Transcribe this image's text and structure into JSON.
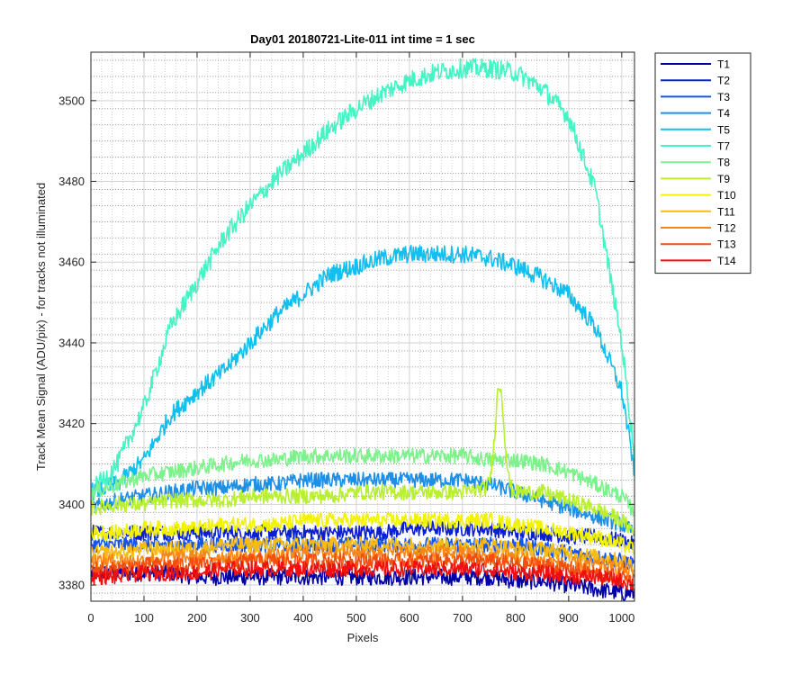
{
  "chart_data": {
    "type": "line",
    "title": "Day01 20180721-Lite-011 int time = 1 sec",
    "xlabel": "Pixels",
    "ylabel": "Track Mean Signal (ADU/pix) - for tracks not illuminated",
    "xlim": [
      0,
      1024
    ],
    "ylim": [
      3376,
      3512
    ],
    "xticks": [
      0,
      100,
      200,
      300,
      400,
      500,
      600,
      700,
      800,
      900,
      1000
    ],
    "yticks": [
      3380,
      3400,
      3420,
      3440,
      3460,
      3480,
      3500
    ],
    "grid": true,
    "minor_grid": true,
    "legend_position": "outside-top-right",
    "x_sample": [
      0,
      50,
      100,
      150,
      200,
      250,
      300,
      350,
      400,
      450,
      500,
      550,
      600,
      650,
      700,
      750,
      800,
      850,
      900,
      950,
      1000,
      1024
    ],
    "series": [
      {
        "name": "T1",
        "color": "#0000a8",
        "noise": 1.3,
        "values": [
          3383,
          3383,
          3383,
          3383,
          3382,
          3382,
          3382,
          3382,
          3382,
          3382,
          3382,
          3382,
          3382,
          3382,
          3382,
          3382,
          3381,
          3381,
          3380,
          3379,
          3378,
          3378
        ]
      },
      {
        "name": "T2",
        "color": "#0a1fd4",
        "noise": 1.2,
        "values": [
          3393,
          3393,
          3393,
          3393,
          3393,
          3393,
          3393,
          3393,
          3393,
          3393,
          3393,
          3393,
          3394,
          3394,
          3394,
          3394,
          3393,
          3393,
          3392,
          3392,
          3391,
          3390
        ]
      },
      {
        "name": "T3",
        "color": "#1454e8",
        "noise": 1.2,
        "values": [
          3390,
          3390,
          3390,
          3390,
          3390,
          3390,
          3390,
          3390,
          3390,
          3390,
          3390,
          3390,
          3390,
          3390,
          3390,
          3390,
          3390,
          3389,
          3388,
          3387,
          3386,
          3385
        ]
      },
      {
        "name": "T4",
        "color": "#1e8fe6",
        "noise": 1.2,
        "values": [
          3399,
          3401,
          3402,
          3403,
          3404,
          3404,
          3405,
          3405,
          3406,
          3406,
          3406,
          3406,
          3406,
          3406,
          3406,
          3405,
          3403,
          3401,
          3399,
          3397,
          3395,
          3393
        ]
      },
      {
        "name": "T5",
        "color": "#11c0ee",
        "noise": 1.4,
        "values": [
          3403,
          3405,
          3411,
          3422,
          3428,
          3433,
          3440,
          3447,
          3452,
          3457,
          3459,
          3461,
          3462,
          3462,
          3462,
          3461,
          3459,
          3456,
          3452,
          3444,
          3428,
          3408
        ]
      },
      {
        "name": "T7",
        "color": "#46f3c4",
        "noise": 1.5,
        "values": [
          3403,
          3410,
          3424,
          3444,
          3455,
          3466,
          3474,
          3481,
          3487,
          3493,
          3498,
          3502,
          3505,
          3507,
          3508,
          3508,
          3507,
          3503,
          3496,
          3478,
          3440,
          3412
        ]
      },
      {
        "name": "T8",
        "color": "#7df28c",
        "noise": 1.2,
        "values": [
          3403,
          3405,
          3407,
          3408,
          3409,
          3410,
          3411,
          3411,
          3412,
          3412,
          3412,
          3412,
          3412,
          3412,
          3412,
          3411,
          3411,
          3410,
          3408,
          3405,
          3402,
          3398
        ]
      },
      {
        "name": "T9",
        "color": "#b8f030",
        "noise": 1.2,
        "values": [
          3399,
          3400,
          3400,
          3401,
          3401,
          3401,
          3402,
          3402,
          3402,
          3402,
          3403,
          3403,
          3403,
          3403,
          3403,
          3404,
          3403,
          3403,
          3401,
          3399,
          3396,
          3393
        ]
      },
      {
        "name": "T10",
        "color": "#f2f200",
        "noise": 1.2,
        "values": [
          3393,
          3393,
          3394,
          3394,
          3394,
          3395,
          3395,
          3395,
          3396,
          3396,
          3396,
          3396,
          3396,
          3396,
          3396,
          3396,
          3395,
          3394,
          3393,
          3392,
          3390,
          3389
        ]
      },
      {
        "name": "T11",
        "color": "#f7bb16",
        "noise": 1.2,
        "values": [
          3388,
          3388,
          3389,
          3389,
          3389,
          3390,
          3390,
          3390,
          3390,
          3390,
          3390,
          3390,
          3390,
          3390,
          3390,
          3390,
          3389,
          3389,
          3388,
          3387,
          3386,
          3385
        ]
      },
      {
        "name": "T12",
        "color": "#f78617",
        "noise": 1.2,
        "values": [
          3386,
          3386,
          3386,
          3387,
          3387,
          3387,
          3387,
          3387,
          3388,
          3388,
          3388,
          3388,
          3388,
          3388,
          3388,
          3387,
          3387,
          3386,
          3385,
          3385,
          3384,
          3383
        ]
      },
      {
        "name": "T13",
        "color": "#f44d0e",
        "noise": 1.2,
        "values": [
          3384,
          3384,
          3385,
          3385,
          3385,
          3385,
          3386,
          3386,
          3386,
          3386,
          3386,
          3386,
          3386,
          3386,
          3386,
          3386,
          3385,
          3385,
          3384,
          3383,
          3382,
          3381
        ]
      },
      {
        "name": "T14",
        "color": "#ef0f0f",
        "noise": 1.2,
        "values": [
          3382,
          3382,
          3383,
          3383,
          3383,
          3384,
          3384,
          3384,
          3384,
          3384,
          3384,
          3384,
          3384,
          3384,
          3384,
          3384,
          3383,
          3383,
          3382,
          3382,
          3381,
          3380
        ]
      }
    ]
  }
}
